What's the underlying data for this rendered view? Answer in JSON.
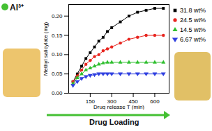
{
  "chart_data": {
    "type": "line",
    "x_label": "Drug release T (min)",
    "y_label": "Methyl salicylate (mg)",
    "annotations": [
      "Al³⁺",
      "Drug Loading"
    ],
    "xlim": [
      0,
      700
    ],
    "xticks": [
      150,
      300,
      450,
      600
    ],
    "ylim": [
      0,
      0.23
    ],
    "yticks": [
      {
        "value": 0,
        "label": "0.00"
      },
      0.05,
      {
        "value": 0.1,
        "label": "0.10"
      },
      0.15,
      {
        "value": 0.2,
        "label": "0.20"
      }
    ],
    "legend": "right",
    "x": [
      30,
      60,
      90,
      120,
      150,
      180,
      210,
      240,
      270,
      300,
      360,
      420,
      480,
      540,
      600,
      660
    ],
    "series": [
      {
        "name": "31.8 wt%",
        "color": "#000000",
        "marker": "square",
        "values": [
          0.03,
          0.05,
          0.07,
          0.09,
          0.105,
          0.12,
          0.135,
          0.145,
          0.16,
          0.17,
          0.185,
          0.2,
          0.21,
          0.215,
          0.22,
          0.22
        ]
      },
      {
        "name": "24.5 wt%",
        "color": "#e8251f",
        "marker": "circle",
        "values": [
          0.03,
          0.045,
          0.06,
          0.075,
          0.085,
          0.095,
          0.1,
          0.11,
          0.115,
          0.12,
          0.13,
          0.14,
          0.145,
          0.15,
          0.15,
          0.15
        ]
      },
      {
        "name": "14.5 wt%",
        "color": "#2fbf2f",
        "marker": "triangle",
        "values": [
          0.025,
          0.04,
          0.05,
          0.06,
          0.065,
          0.07,
          0.075,
          0.078,
          0.08,
          0.08,
          0.08,
          0.08,
          0.08,
          0.08,
          0.08,
          0.08
        ]
      },
      {
        "name": "6.67 wt%",
        "color": "#2f3fe0",
        "marker": "triangle_down",
        "values": [
          0.02,
          0.03,
          0.038,
          0.043,
          0.046,
          0.048,
          0.05,
          0.05,
          0.05,
          0.05,
          0.05,
          0.05,
          0.05,
          0.05,
          0.05,
          0.05
        ]
      }
    ]
  }
}
